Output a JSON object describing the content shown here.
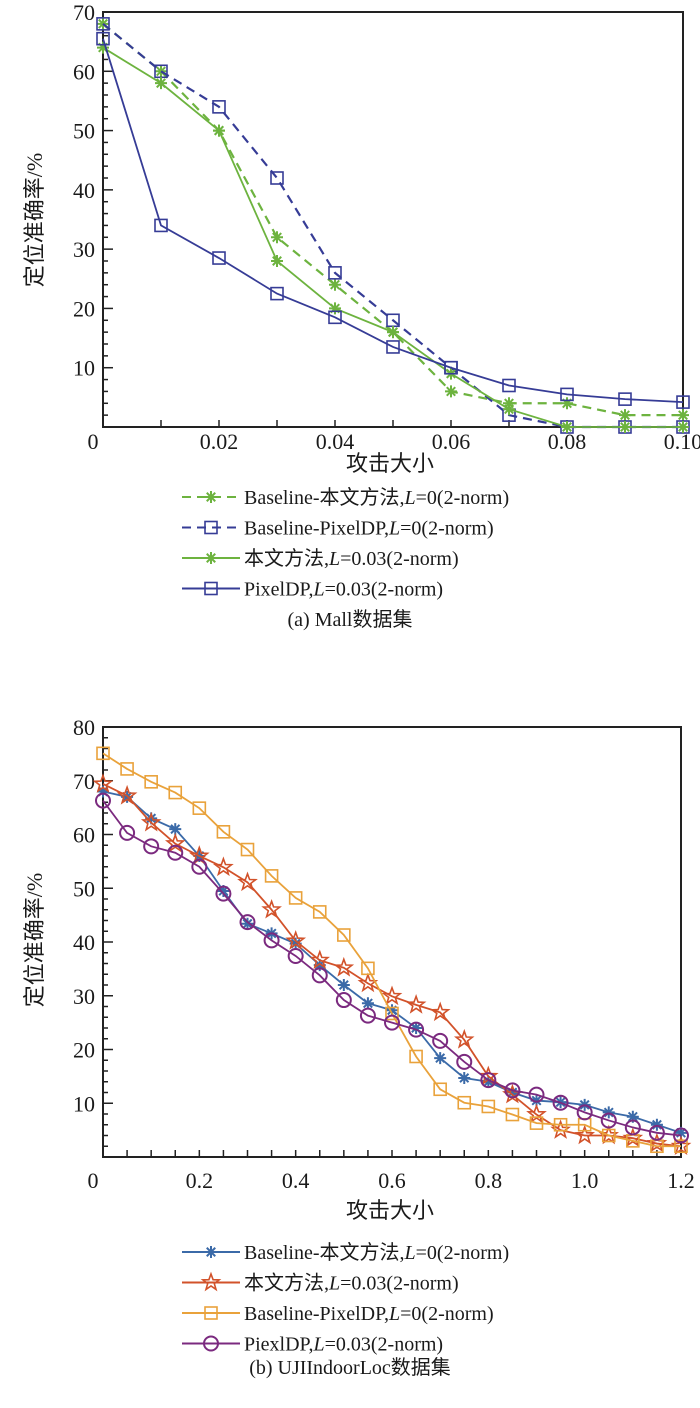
{
  "chart_data": [
    {
      "type": "line",
      "title": "(a) Mall数据集",
      "xlabel": "攻击大小",
      "ylabel": "定位准确率/%",
      "xlim": [
        0,
        0.1
      ],
      "ylim": [
        0,
        70
      ],
      "xticks": [
        "0",
        "0.02",
        "0.04",
        "0.06",
        "0.08",
        "0.10"
      ],
      "xtick_values": [
        0,
        0.02,
        0.04,
        0.06,
        0.08,
        0.1
      ],
      "yticks": [
        "10",
        "20",
        "30",
        "40",
        "50",
        "60",
        "70"
      ],
      "ytick_values": [
        10,
        20,
        30,
        40,
        50,
        60,
        70
      ],
      "grid": false,
      "legend_placement": "below",
      "x": [
        0,
        0.01,
        0.02,
        0.03,
        0.04,
        0.05,
        0.06,
        0.07,
        0.08,
        0.09,
        0.1
      ],
      "series": [
        {
          "name": "Baseline-本文方法,L=0(2-norm)",
          "color": "#6db33f",
          "dash": true,
          "marker": "asterisk",
          "values": [
            68,
            60,
            50,
            32,
            24,
            16,
            6,
            4,
            4,
            2,
            2
          ]
        },
        {
          "name": "Baseline-PixelDP,L=0(2-norm)",
          "color": "#363c96",
          "dash": true,
          "marker": "square",
          "values": [
            68,
            60,
            54,
            42,
            26,
            18,
            10,
            2,
            0,
            0,
            0
          ]
        },
        {
          "name": "本文方法,L=0.03(2-norm)",
          "color": "#6db33f",
          "dash": false,
          "marker": "asterisk",
          "values": [
            64,
            58,
            50,
            28,
            20,
            16,
            9,
            3,
            0,
            0,
            0
          ]
        },
        {
          "name": "PixelDP,L=0.03(2-norm)",
          "color": "#363c96",
          "dash": false,
          "marker": "square",
          "values": [
            65.5,
            34,
            28.5,
            22.5,
            18.5,
            13.5,
            10,
            7,
            5.5,
            4.7,
            4.2
          ]
        }
      ]
    },
    {
      "type": "line",
      "title": "(b) UJIIndoorLoc数据集",
      "xlabel": "攻击大小",
      "ylabel": "定位准确率/%",
      "xlim": [
        0,
        1.2
      ],
      "ylim": [
        0,
        80
      ],
      "xticks": [
        "0",
        "0.2",
        "0.4",
        "0.6",
        "0.8",
        "1.0",
        "1.2"
      ],
      "xtick_values": [
        0,
        0.2,
        0.4,
        0.6,
        0.8,
        1.0,
        1.2
      ],
      "yticks": [
        "10",
        "20",
        "30",
        "40",
        "50",
        "60",
        "70",
        "80"
      ],
      "ytick_values": [
        10,
        20,
        30,
        40,
        50,
        60,
        70,
        80
      ],
      "grid": false,
      "legend_placement": "below",
      "x": [
        0,
        0.05,
        0.1,
        0.15,
        0.2,
        0.25,
        0.3,
        0.35,
        0.4,
        0.45,
        0.5,
        0.55,
        0.6,
        0.65,
        0.7,
        0.75,
        0.8,
        0.85,
        0.9,
        0.95,
        1.0,
        1.05,
        1.1,
        1.15,
        1.2
      ],
      "series": [
        {
          "name": "Baseline-本文方法,L=0(2-norm)",
          "color": "#3b6aa8",
          "dash": false,
          "marker": "asterisk",
          "values": [
            68,
            67,
            63,
            61,
            56,
            49.5,
            43.4,
            41.6,
            39.7,
            35.7,
            32,
            28.6,
            27.3,
            24,
            18.4,
            14.7,
            14,
            12,
            10.5,
            10.2,
            9.7,
            8.3,
            7.5,
            6,
            4.5
          ]
        },
        {
          "name": "本文方法,L=0.03(2-norm)",
          "color": "#d2522a",
          "dash": false,
          "marker": "star",
          "values": [
            69.4,
            67.2,
            62.2,
            58.3,
            56,
            53.9,
            51.1,
            46,
            40.2,
            36.6,
            35.2,
            32.3,
            29.9,
            28.3,
            26.9,
            21.8,
            15,
            11.6,
            7.9,
            5,
            4,
            4,
            3.5,
            2.5,
            2
          ]
        },
        {
          "name": "Baseline-PixelDP,L=0(2-norm)",
          "color": "#e9a23b",
          "dash": false,
          "marker": "square",
          "values": [
            75.1,
            72.2,
            69.8,
            67.8,
            64.9,
            60.5,
            57.2,
            52.3,
            48.2,
            45.6,
            41.3,
            35.1,
            26.7,
            18.7,
            12.6,
            10.1,
            9.4,
            7.9,
            6.3,
            6,
            6,
            4,
            3,
            2,
            2
          ]
        },
        {
          "name": "PiexlDP,L=0.03(2-norm)",
          "color": "#7b2a7f",
          "dash": false,
          "marker": "circle",
          "values": [
            66.3,
            60.3,
            57.8,
            56.6,
            54,
            49,
            43.7,
            40.3,
            37.4,
            33.8,
            29.2,
            26.3,
            25,
            23.7,
            21.6,
            17.7,
            14.3,
            12.4,
            11.6,
            10.1,
            8.3,
            6.8,
            5.5,
            4.5,
            4
          ]
        }
      ]
    }
  ]
}
